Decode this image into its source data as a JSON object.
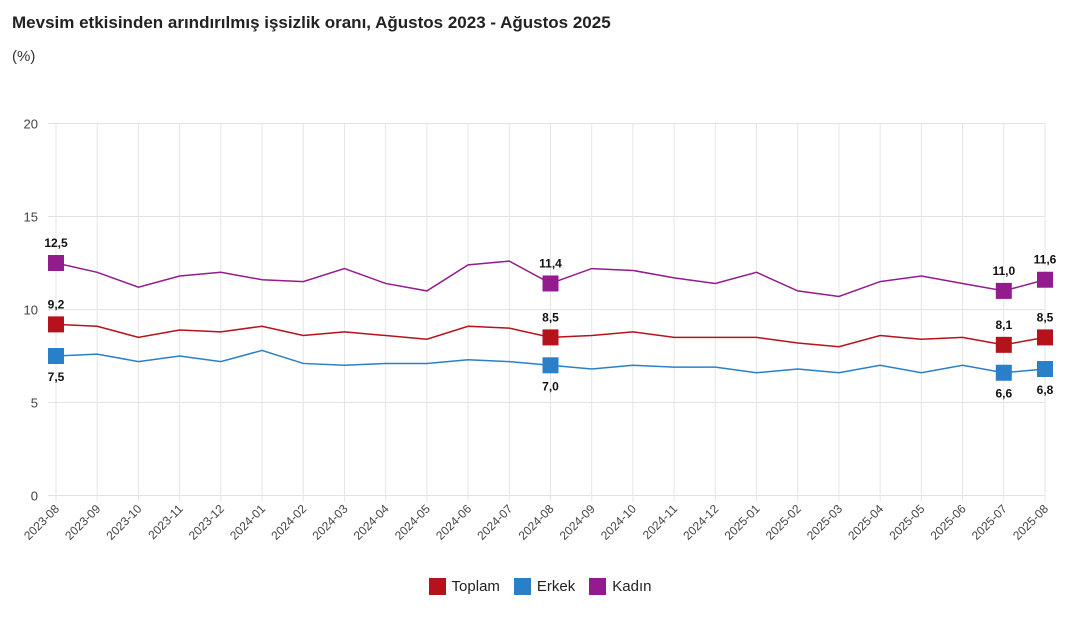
{
  "chart_data": {
    "type": "line",
    "title": "Mevsim etkisinden arındırılmış işsizlik oranı, Ağustos 2023 - Ağustos 2025",
    "subtitle": "(%)",
    "xlabel": "",
    "ylabel": "",
    "ylim": [
      0,
      20
    ],
    "yticks": [
      0,
      5,
      10,
      15,
      20
    ],
    "grid": true,
    "legend_position": "bottom-center",
    "categories": [
      "2023-08",
      "2023-09",
      "2023-10",
      "2023-11",
      "2023-12",
      "2024-01",
      "2024-02",
      "2024-03",
      "2024-04",
      "2024-05",
      "2024-06",
      "2024-07",
      "2024-08",
      "2024-09",
      "2024-10",
      "2024-11",
      "2024-12",
      "2025-01",
      "2025-02",
      "2025-03",
      "2025-04",
      "2025-05",
      "2025-06",
      "2025-07",
      "2025-08"
    ],
    "series": [
      {
        "name": "Toplam",
        "color": "#b5121b",
        "values": [
          9.2,
          9.1,
          8.5,
          8.9,
          8.8,
          9.1,
          8.6,
          8.8,
          8.6,
          8.4,
          9.1,
          9.0,
          8.5,
          8.6,
          8.8,
          8.5,
          8.5,
          8.5,
          8.2,
          8.0,
          8.6,
          8.4,
          8.5,
          8.1,
          8.5
        ],
        "labeled_points": [
          0,
          12,
          23,
          24
        ],
        "label_position": "above"
      },
      {
        "name": "Erkek",
        "color": "#2a7fc9",
        "values": [
          7.5,
          7.6,
          7.2,
          7.5,
          7.2,
          7.8,
          7.1,
          7.0,
          7.1,
          7.1,
          7.3,
          7.2,
          7.0,
          6.8,
          7.0,
          6.9,
          6.9,
          6.6,
          6.8,
          6.6,
          7.0,
          6.6,
          7.0,
          6.6,
          6.8
        ],
        "labeled_points": [
          0,
          12,
          23,
          24
        ],
        "label_position": "below"
      },
      {
        "name": "Kadın",
        "color": "#941b8e",
        "values": [
          12.5,
          12.0,
          11.2,
          11.8,
          12.0,
          11.6,
          11.5,
          12.2,
          11.4,
          11.0,
          12.4,
          12.6,
          11.4,
          12.2,
          12.1,
          11.7,
          11.4,
          12.0,
          11.0,
          10.7,
          11.5,
          11.8,
          11.4,
          11.0,
          11.6
        ],
        "labeled_points": [
          0,
          12,
          23,
          24
        ],
        "label_position": "above"
      }
    ],
    "decimal_separator": ","
  }
}
